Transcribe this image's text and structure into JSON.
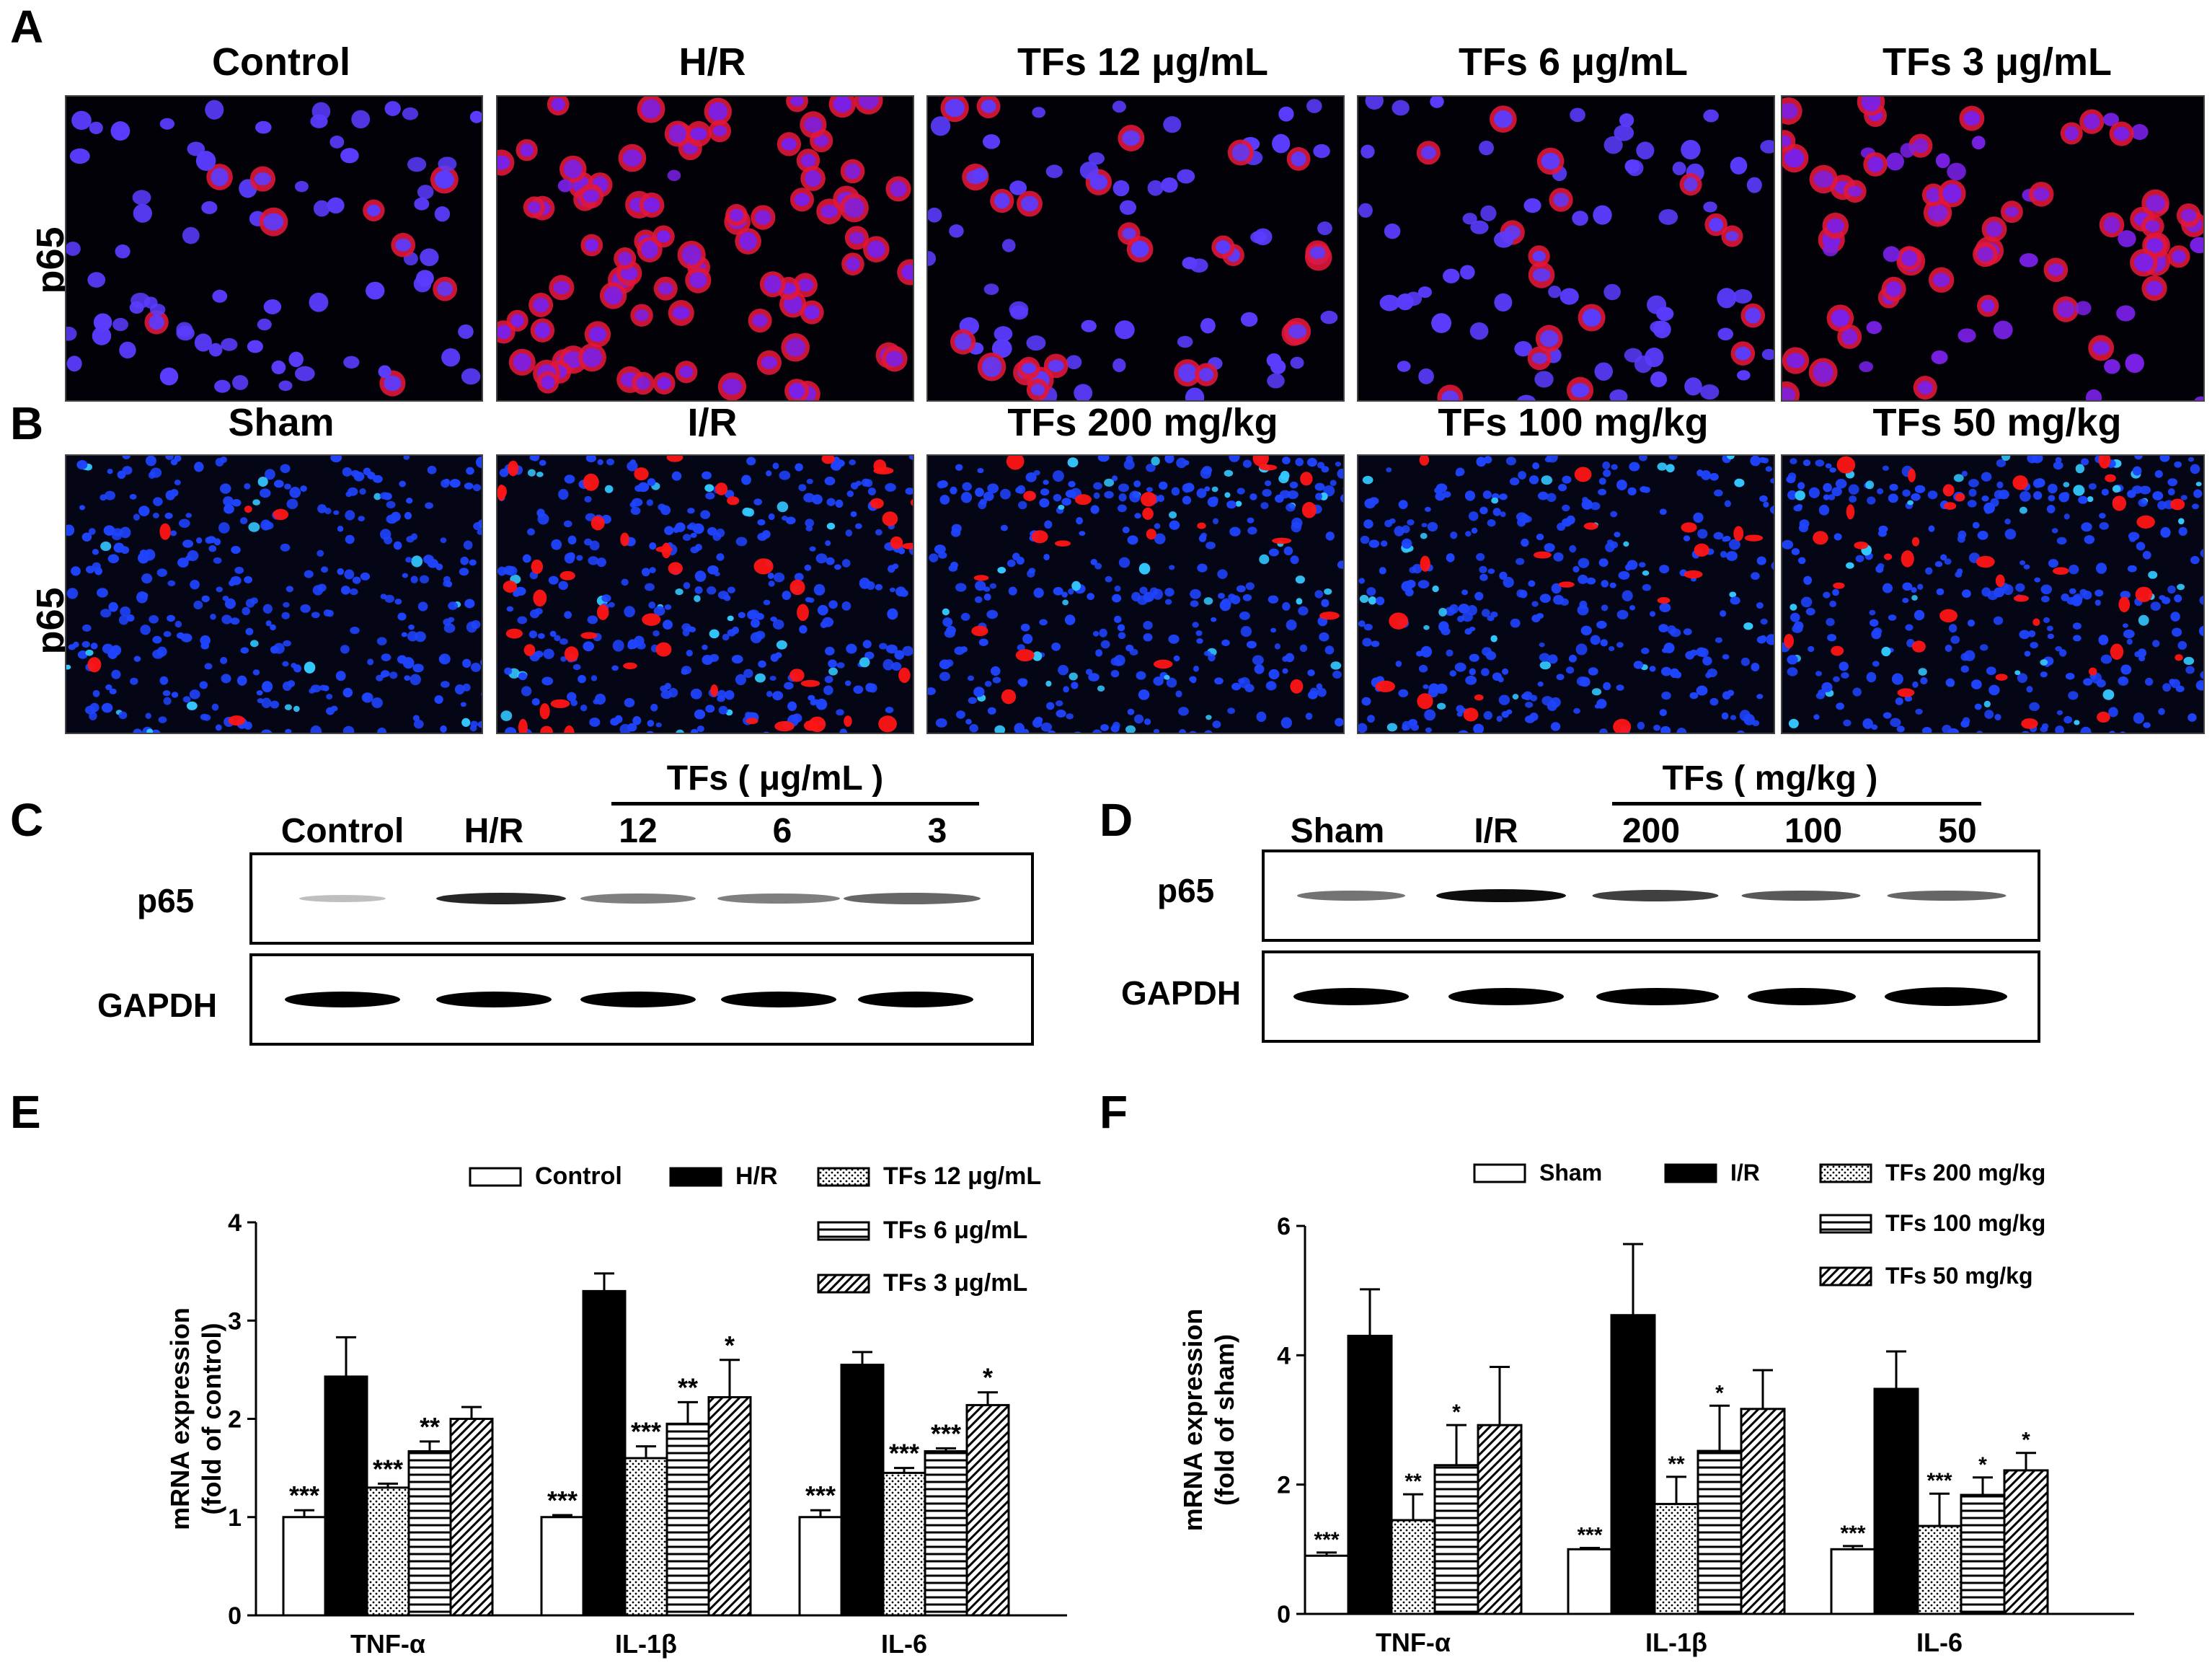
{
  "panel_letters": {
    "A": "A",
    "B": "B",
    "C": "C",
    "D": "D",
    "E": "E",
    "F": "F"
  },
  "panelA": {
    "row_label": "p65",
    "titles": [
      "Control",
      "H/R",
      "TFs 12 μg/mL",
      "TFs 6 μg/mL",
      "TFs 3 μg/mL"
    ]
  },
  "panelB": {
    "row_label": "p65",
    "titles": [
      "Sham",
      "I/R",
      "TFs 200 mg/kg",
      "TFs 100 mg/kg",
      "TFs 50 mg/kg"
    ]
  },
  "panelC": {
    "group_label": "TFs ( μg/mL )",
    "lanes": [
      "Control",
      "H/R",
      "12",
      "6",
      "3"
    ],
    "rows": [
      "p65",
      "GAPDH"
    ]
  },
  "panelD": {
    "group_label": "TFs ( mg/kg )",
    "lanes": [
      "Sham",
      "I/R",
      "200",
      "100",
      "50"
    ],
    "rows": [
      "p65",
      "GAPDH"
    ]
  },
  "colors": {
    "red_stain": "#ff1a1a",
    "blue_stain": "#1f3bff",
    "black": "#000000"
  },
  "chart_data": [
    {
      "panel": "E",
      "type": "bar",
      "ylabel": "mRNA expression",
      "ylabel2": "(fold of control)",
      "ylim": [
        0,
        4
      ],
      "yticks": [
        "0",
        "1",
        "2",
        "3",
        "4"
      ],
      "categories": [
        "TNF-α",
        "IL-1β",
        "IL-6"
      ],
      "series": [
        {
          "name": "Control",
          "fill": "white",
          "values": [
            1.0,
            1.0,
            1.0
          ],
          "errors": [
            0.07,
            0.02,
            0.07
          ],
          "sig": [
            "***",
            "***",
            "***"
          ]
        },
        {
          "name": "H/R",
          "fill": "black",
          "values": [
            2.43,
            3.3,
            2.55
          ],
          "errors": [
            0.4,
            0.18,
            0.13
          ],
          "sig": [
            "",
            "",
            ""
          ]
        },
        {
          "name": "TFs 12 μg/mL",
          "fill": "dots",
          "values": [
            1.3,
            1.6,
            1.45
          ],
          "errors": [
            0.04,
            0.12,
            0.05
          ],
          "sig": [
            "***",
            "***",
            "***"
          ]
        },
        {
          "name": "TFs 6 μg/mL",
          "fill": "hlines",
          "values": [
            1.67,
            1.95,
            1.67
          ],
          "errors": [
            0.1,
            0.22,
            0.03
          ],
          "sig": [
            "**",
            "**",
            "***"
          ]
        },
        {
          "name": "TFs 3 μg/mL",
          "fill": "diag",
          "values": [
            2.0,
            2.22,
            2.14
          ],
          "errors": [
            0.12,
            0.38,
            0.13
          ],
          "sig": [
            "",
            "*",
            "*"
          ]
        }
      ]
    },
    {
      "panel": "F",
      "type": "bar",
      "ylabel": "mRNA expression",
      "ylabel2": "(fold of sham)",
      "ylim": [
        0,
        6
      ],
      "yticks": [
        "0",
        "2",
        "4",
        "6"
      ],
      "categories": [
        "TNF-α",
        "IL-1β",
        "IL-6"
      ],
      "series": [
        {
          "name": "Sham",
          "fill": "white",
          "values": [
            0.9,
            1.0,
            1.0
          ],
          "errors": [
            0.05,
            0.02,
            0.05
          ],
          "sig": [
            "***",
            "***",
            "***"
          ]
        },
        {
          "name": "I/R",
          "fill": "black",
          "values": [
            4.3,
            4.62,
            3.48
          ],
          "errors": [
            0.72,
            1.1,
            0.58
          ],
          "sig": [
            "",
            "",
            ""
          ]
        },
        {
          "name": "TFs 200 mg/kg",
          "fill": "dots",
          "values": [
            1.45,
            1.7,
            1.36
          ],
          "errors": [
            0.4,
            0.42,
            0.5
          ],
          "sig": [
            "**",
            "**",
            "***"
          ]
        },
        {
          "name": "TFs 100 mg/kg",
          "fill": "hlines",
          "values": [
            2.3,
            2.52,
            1.84
          ],
          "errors": [
            0.62,
            0.7,
            0.27
          ],
          "sig": [
            "*",
            "*",
            "*"
          ]
        },
        {
          "name": "TFs 50 mg/kg",
          "fill": "diag",
          "values": [
            2.92,
            3.17,
            2.22
          ],
          "errors": [
            0.9,
            0.6,
            0.27
          ],
          "sig": [
            "",
            "",
            "*"
          ]
        }
      ]
    }
  ]
}
